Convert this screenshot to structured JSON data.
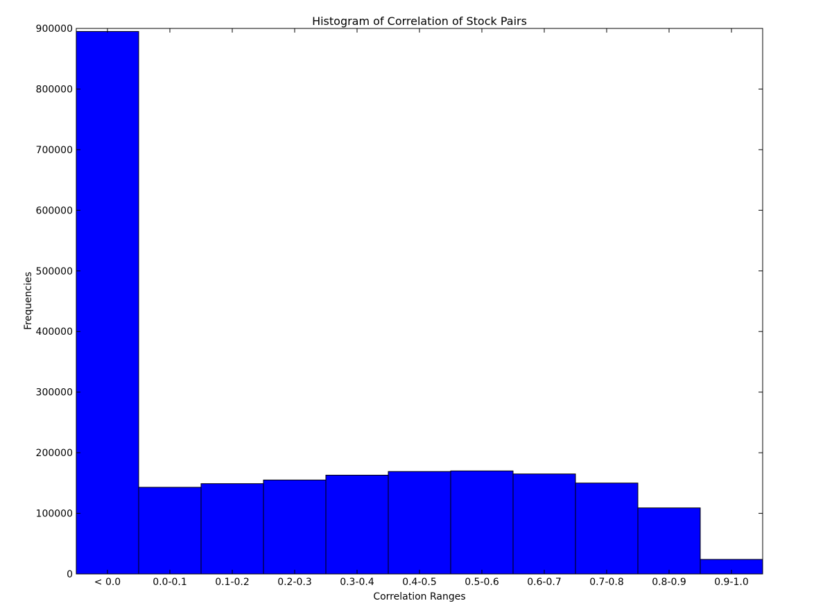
{
  "chart_data": {
    "type": "bar",
    "title": "Histogram of Correlation of Stock Pairs",
    "xlabel": "Correlation Ranges",
    "ylabel": "Frequencies",
    "categories": [
      "< 0.0",
      "0.0-0.1",
      "0.1-0.2",
      "0.2-0.3",
      "0.3-0.4",
      "0.4-0.5",
      "0.5-0.6",
      "0.6-0.7",
      "0.7-0.8",
      "0.8-0.9",
      "0.9-1.0"
    ],
    "values": [
      895000,
      143000,
      149000,
      155000,
      163000,
      169000,
      170000,
      165000,
      150000,
      109000,
      24000
    ],
    "ylim": [
      0,
      900000
    ],
    "yticks": [
      0,
      100000,
      200000,
      300000,
      400000,
      500000,
      600000,
      700000,
      800000,
      900000
    ],
    "bar_color": "#0000ff",
    "edge_color": "#000000",
    "grid": false,
    "legend": "none"
  }
}
